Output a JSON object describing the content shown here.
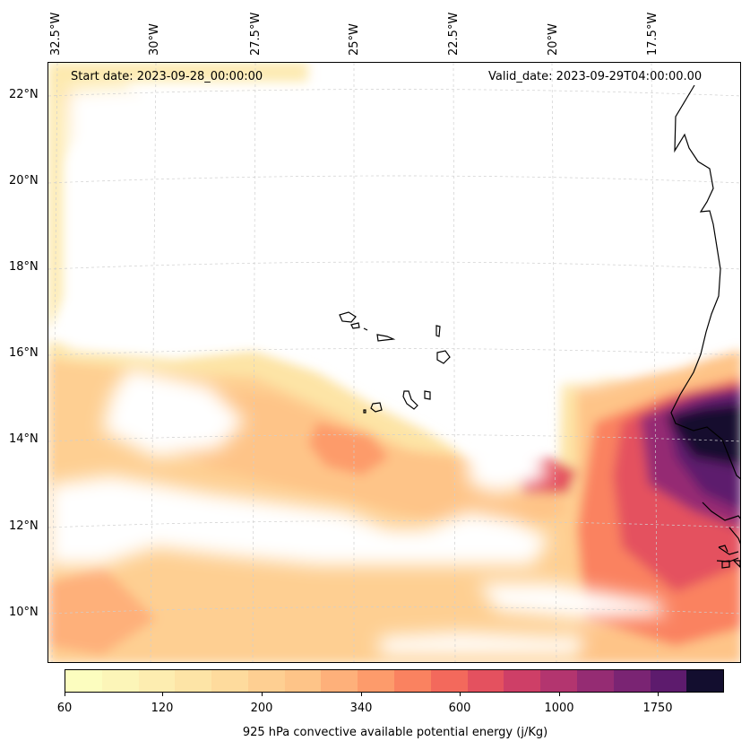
{
  "map": {
    "start_date": "Start date: 2023-09-28_00:00:00",
    "valid_date": "Valid_date: 2023-09-29T04:00:00.00",
    "lon_labels": [
      "32.5°W",
      "30°W",
      "27.5°W",
      "25°W",
      "22.5°W",
      "20°W",
      "17.5°W"
    ],
    "lat_labels": [
      "22°N",
      "20°N",
      "18°N",
      "16°N",
      "14°N",
      "12°N",
      "10°N"
    ]
  },
  "colorbar": {
    "label": "925 hPa convective available potential energy (j/Kg)",
    "tick_labels": [
      "60",
      "120",
      "200",
      "340",
      "600",
      "1000",
      "1750"
    ],
    "colors": [
      "#fcfdbf",
      "#fcf5b8",
      "#fdedb0",
      "#fde4a6",
      "#fedb9d",
      "#fecf92",
      "#fec488",
      "#feb07a",
      "#fd9b6b",
      "#fa8260",
      "#f3695c",
      "#e4515f",
      "#ce3f67",
      "#b3356f",
      "#952c73",
      "#7a2473",
      "#5d1b6d",
      "#130e2f"
    ]
  },
  "colors": {
    "grid": "#cfcfcf",
    "coast": "#000000",
    "no_data": "#ffffff"
  }
}
